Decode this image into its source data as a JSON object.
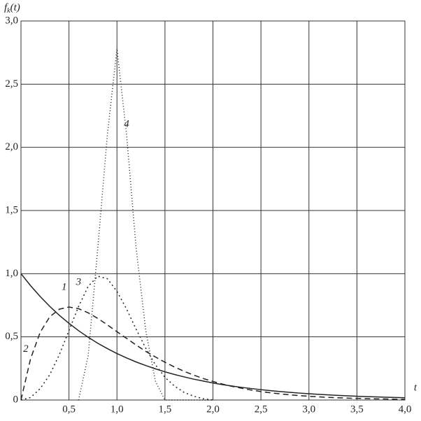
{
  "chart_data": {
    "type": "line",
    "y_label": [
      "f",
      "k",
      "(t)"
    ],
    "x_label": "t",
    "x": [
      0,
      0.1,
      0.2,
      0.3,
      0.4,
      0.5,
      0.6,
      0.7,
      0.8,
      0.9,
      1.0,
      1.1,
      1.2,
      1.3,
      1.4,
      1.5,
      1.6,
      1.7,
      1.8,
      1.9,
      2.0,
      2.1,
      2.2,
      2.3,
      2.4,
      2.5,
      2.6,
      2.7,
      2.8,
      2.9,
      3.0,
      3.1,
      3.2,
      3.3,
      3.4,
      3.5,
      3.6,
      3.7,
      3.8,
      3.9,
      4.0
    ],
    "series": [
      {
        "name": "1",
        "color": "#222",
        "dash": "none",
        "label_at": [
          0.45,
          0.89
        ],
        "values": [
          1,
          0.905,
          0.819,
          0.741,
          0.67,
          0.607,
          0.549,
          0.497,
          0.449,
          0.407,
          0.368,
          0.333,
          0.301,
          0.273,
          0.247,
          0.223,
          0.202,
          0.183,
          0.165,
          0.15,
          0.135,
          0.122,
          0.111,
          0.1,
          0.091,
          0.082,
          0.074,
          0.067,
          0.061,
          0.055,
          0.05,
          0.045,
          0.041,
          0.037,
          0.033,
          0.03,
          0.027,
          0.025,
          0.022,
          0.02,
          0.018
        ]
      },
      {
        "name": "2",
        "color": "#222",
        "dash": "8 5",
        "label_at": [
          0.05,
          0.4
        ],
        "values": [
          0,
          0.327,
          0.536,
          0.659,
          0.719,
          0.736,
          0.723,
          0.69,
          0.646,
          0.595,
          0.541,
          0.488,
          0.435,
          0.385,
          0.341,
          0.299,
          0.261,
          0.227,
          0.197,
          0.17,
          0.147,
          0.126,
          0.108,
          0.093,
          0.079,
          0.067,
          0.057,
          0.049,
          0.041,
          0.035,
          0.03,
          0.025,
          0.021,
          0.018,
          0.015,
          0.013,
          0.011,
          0.009,
          0.008,
          0.006,
          0.005
        ]
      },
      {
        "name": "3",
        "color": "#222",
        "dash": "2 4",
        "label_at": [
          0.6,
          0.93
        ],
        "values": [
          0,
          0.02,
          0.09,
          0.2,
          0.36,
          0.55,
          0.74,
          0.9,
          0.98,
          0.96,
          0.86,
          0.72,
          0.56,
          0.41,
          0.28,
          0.18,
          0.11,
          0.06,
          0.03,
          0.01,
          0,
          null,
          null,
          null,
          null,
          null,
          null,
          null,
          null,
          null,
          null,
          null,
          null,
          null,
          null,
          null,
          null,
          null,
          null,
          null,
          null
        ]
      },
      {
        "name": "4",
        "color": "#222",
        "dash": "1 3",
        "label_at": [
          1.1,
          2.18
        ],
        "values": [
          null,
          null,
          null,
          null,
          null,
          null,
          0,
          0.35,
          1.2,
          2.1,
          2.78,
          2.1,
          1.2,
          0.55,
          0.15,
          0,
          0,
          0,
          0,
          0,
          0,
          null,
          null,
          null,
          null,
          null,
          null,
          null,
          null,
          null,
          null,
          null,
          null,
          null,
          null,
          null,
          null,
          null,
          null,
          null,
          null
        ]
      }
    ],
    "xlim": [
      0,
      4
    ],
    "ylim": [
      0,
      3
    ],
    "xticks": [
      {
        "value": 0.5,
        "label": "0,5"
      },
      {
        "value": 1.0,
        "label": "1,0"
      },
      {
        "value": 1.5,
        "label": "1,5"
      },
      {
        "value": 2.0,
        "label": "2,0"
      },
      {
        "value": 2.5,
        "label": "2,5"
      },
      {
        "value": 3.0,
        "label": "3,0"
      },
      {
        "value": 3.5,
        "label": "3,5"
      },
      {
        "value": 4.0,
        "label": "4,0"
      }
    ],
    "yticks": [
      0,
      {
        "value": 0.5,
        "label": "0,5"
      },
      {
        "value": 1.0,
        "label": "1,0"
      },
      {
        "value": 1.5,
        "label": "1,5"
      },
      {
        "value": 2.0,
        "label": "2,0"
      },
      {
        "value": 2.5,
        "label": "2,5"
      },
      {
        "value": 3.0,
        "label": "3,0"
      }
    ],
    "grid": true
  }
}
